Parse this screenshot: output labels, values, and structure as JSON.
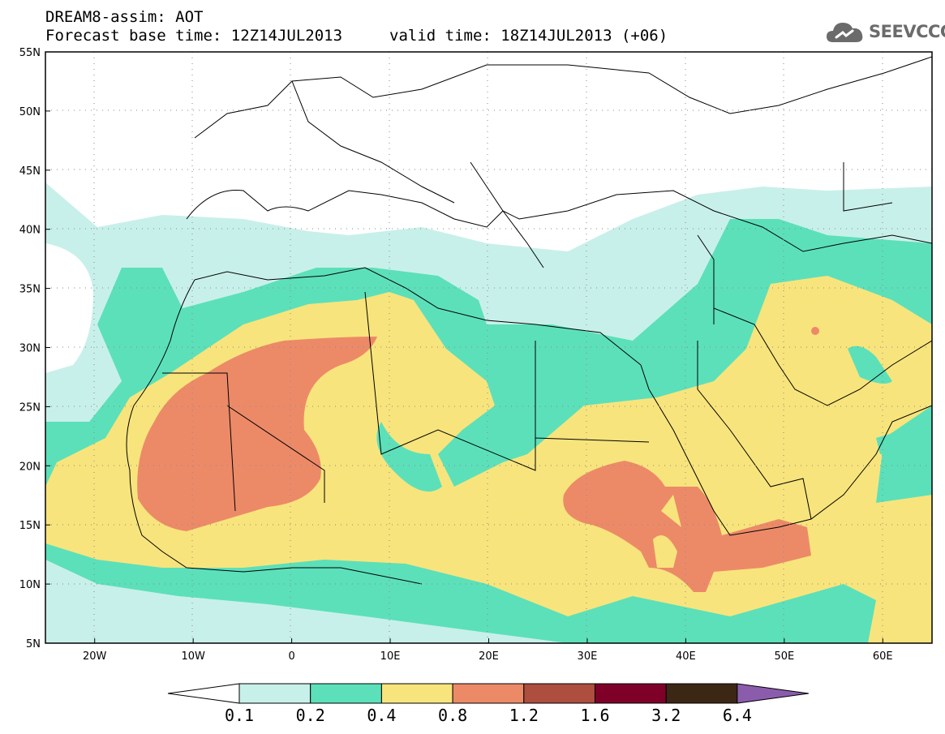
{
  "header": {
    "title": "DREAM8-assim: AOT",
    "base_time_label": "Forecast base time: 12Z14JUL2013",
    "valid_time_label": "valid time: 18Z14JUL2013 (+06)",
    "logo_text": "SEEVCCC",
    "logo_icon": "cloud-icon"
  },
  "map": {
    "lat_labels": [
      "55N",
      "50N",
      "45N",
      "40N",
      "35N",
      "30N",
      "25N",
      "20N",
      "15N",
      "10N",
      "5N"
    ],
    "lon_labels": [
      "20W",
      "10W",
      "0",
      "10E",
      "20E",
      "30E",
      "40E",
      "50E",
      "60E"
    ],
    "lat_values": [
      55,
      50,
      45,
      40,
      35,
      30,
      25,
      20,
      15,
      10,
      5
    ],
    "lon_values": [
      -20,
      -10,
      0,
      10,
      20,
      30,
      40,
      50,
      60
    ],
    "lon_range": [
      -25,
      65
    ],
    "lat_range": [
      5,
      55
    ],
    "grid": true
  },
  "colorbar": {
    "labels": [
      "0.1",
      "0.2",
      "0.4",
      "0.8",
      "1.2",
      "1.6",
      "3.2",
      "6.4"
    ],
    "colors": [
      "#ffffff",
      "#c8f0ea",
      "#5ce0ba",
      "#f8e47c",
      "#ec8a68",
      "#ad4e3e",
      "#7e0028",
      "#3c2614",
      "#8c5cac"
    ]
  }
}
